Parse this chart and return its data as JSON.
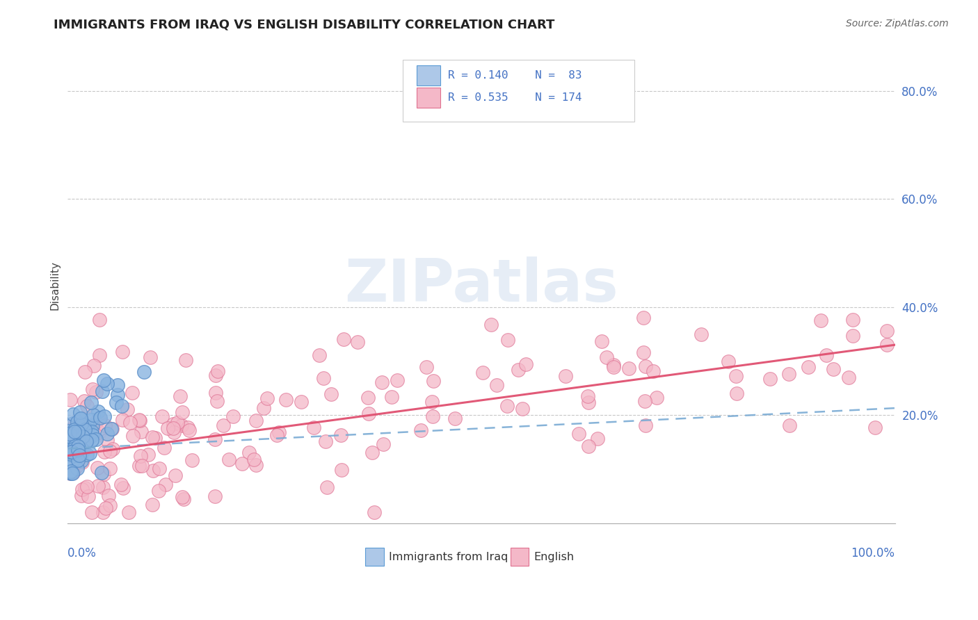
{
  "title": "IMMIGRANTS FROM IRAQ VS ENGLISH DISABILITY CORRELATION CHART",
  "source": "Source: ZipAtlas.com",
  "ylabel": "Disability",
  "xlim": [
    0.0,
    1.0
  ],
  "ylim": [
    0.0,
    0.88
  ],
  "ytick_values": [
    0.2,
    0.4,
    0.6,
    0.8
  ],
  "ytick_labels": [
    "20.0%",
    "40.0%",
    "60.0%",
    "80.0%"
  ],
  "blue_scatter_color": "#8ab4e0",
  "blue_edge_color": "#5b8fc9",
  "pink_scatter_color": "#f4b8c8",
  "pink_edge_color": "#e07898",
  "blue_line_color": "#7aabd4",
  "pink_line_color": "#e05070",
  "watermark": "ZIPatlas",
  "legend_r_blue": "R = 0.140",
  "legend_n_blue": "N =  83",
  "legend_r_pink": "R = 0.535",
  "legend_n_pink": "N = 174",
  "legend_blue_fill": "#adc8e8",
  "legend_blue_edge": "#5b9bd5",
  "legend_pink_fill": "#f4b8c8",
  "legend_pink_edge": "#e07090",
  "title_color": "#222222",
  "source_color": "#666666",
  "ylabel_color": "#444444",
  "ytick_color": "#4472c4",
  "xlabel_color": "#4472c4",
  "grid_color": "#c8c8c8"
}
